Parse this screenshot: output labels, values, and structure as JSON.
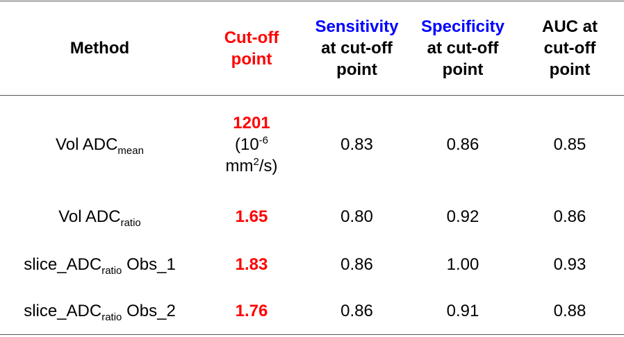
{
  "table": {
    "header": {
      "method": "Method",
      "cutoff": "Cut-off point",
      "sensitivity": {
        "highlight": "Sensitivity",
        "rest": "at cut-off point"
      },
      "specificity": {
        "highlight": "Specificity",
        "rest": "at cut-off point"
      },
      "auc": "AUC at cut-off point"
    },
    "rows": [
      {
        "method": {
          "pre": "Vol ADC",
          "sub": "mean",
          "post": ""
        },
        "cutoff": "1201",
        "unit": [
          "(10",
          "-6",
          "mm",
          "2",
          "/s)"
        ],
        "sensitivity": "0.83",
        "specificity": "0.86",
        "auc": "0.85"
      },
      {
        "method": {
          "pre": "Vol ADC",
          "sub": "ratio",
          "post": ""
        },
        "cutoff": "1.65",
        "sensitivity": "0.80",
        "specificity": "0.92",
        "auc": "0.86"
      },
      {
        "method": {
          "pre": "slice_ADC",
          "sub": "ratio",
          "post": " Obs_1"
        },
        "cutoff": "1.83",
        "sensitivity": "0.86",
        "specificity": "1.00",
        "auc": "0.93"
      },
      {
        "method": {
          "pre": "slice_ADC",
          "sub": "ratio",
          "post": " Obs_2"
        },
        "cutoff": "1.76",
        "sensitivity": "0.86",
        "specificity": "0.91",
        "auc": "0.88"
      }
    ]
  }
}
